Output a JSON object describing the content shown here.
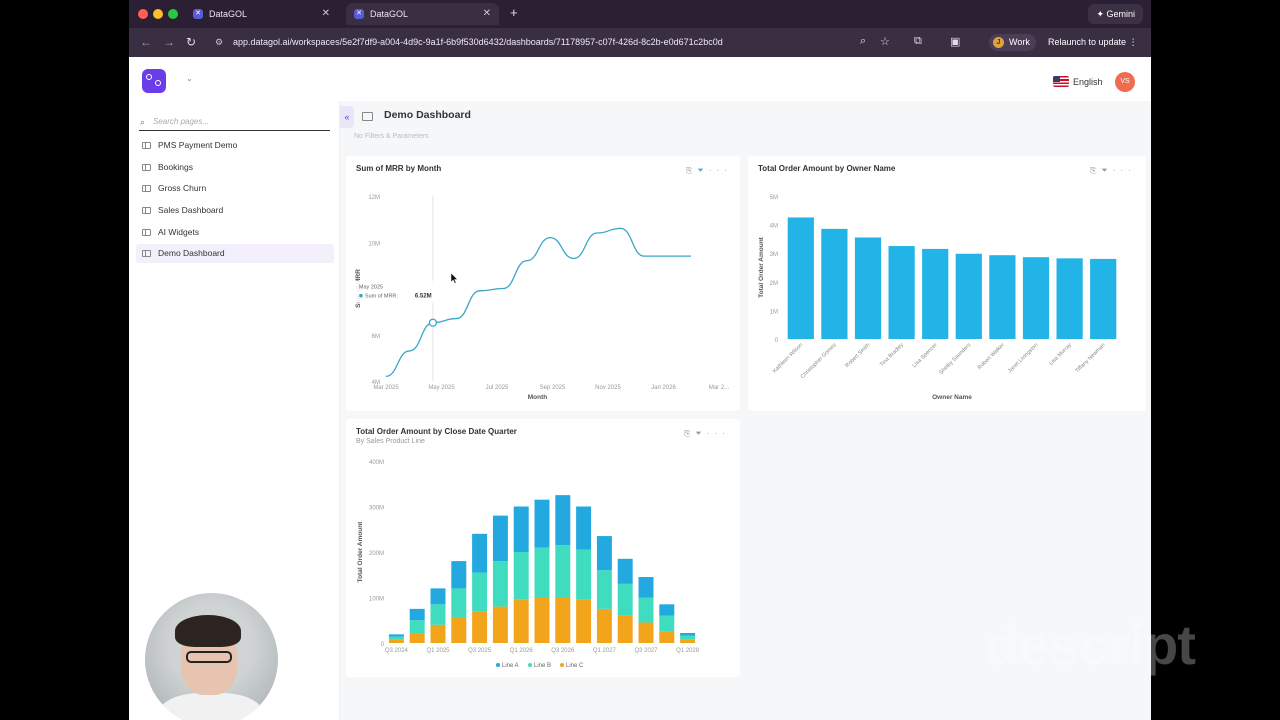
{
  "browser": {
    "tabs": [
      {
        "label": "DataGOL",
        "active": false
      },
      {
        "label": "DataGOL",
        "active": true
      }
    ],
    "new_tab": "+",
    "gemini_label": "Gemini",
    "url": "app.datagol.ai/workspaces/5e2f7df9-a004-4d9c-9a1f-6b9f530d6432/dashboards/71178957-c07f-426d-8c2b-e0d671c2bc0d",
    "profile_label": "Work",
    "profile_initial": "J",
    "relaunch_label": "Relaunch to update"
  },
  "header": {
    "language": "English",
    "avatar_initials": "VS"
  },
  "sidebar": {
    "search_placeholder": "Search pages...",
    "items": [
      {
        "label": "PMS Payment Demo",
        "active": false
      },
      {
        "label": "Bookings",
        "active": false
      },
      {
        "label": "Gross Churn",
        "active": false
      },
      {
        "label": "Sales Dashboard",
        "active": false
      },
      {
        "label": "AI Widgets",
        "active": false
      },
      {
        "label": "Demo Dashboard",
        "active": true
      }
    ]
  },
  "main": {
    "title": "Demo Dashboard",
    "filters_text": "No Filters & Parameters",
    "collapse_label": "«"
  },
  "chart_data": [
    {
      "type": "line",
      "title": "Sum of MRR by Month",
      "xlabel": "Month",
      "ylabel": "Sum of MRR",
      "y_ticks": [
        "12M",
        "10M",
        "8M",
        "6M",
        "4M"
      ],
      "x_ticks": [
        "Mar 2025",
        "May 2025",
        "Jul 2025",
        "Sep 2025",
        "Nov 2025",
        "Jan 2026",
        "Mar 2..."
      ],
      "ylim": [
        4,
        12
      ],
      "x": [
        0,
        1,
        2,
        3,
        4,
        5,
        6,
        7,
        8,
        9,
        10,
        11,
        12,
        13
      ],
      "values": [
        4.2,
        5.3,
        6.52,
        6.7,
        7.9,
        8.0,
        9.2,
        10.2,
        9.3,
        10.4,
        10.6,
        9.4,
        9.4,
        9.4
      ],
      "tooltip": {
        "label": "May 2025",
        "series": "Sum of MRR",
        "value": "6.52M"
      },
      "color": "#3aa6c6"
    },
    {
      "type": "bar",
      "title": "Total Order Amount by Owner Name",
      "xlabel": "Owner Name",
      "ylabel": "Total Order Amount",
      "y_ticks": [
        "5M",
        "4M",
        "3M",
        "2M",
        "1M",
        "0"
      ],
      "ylim": [
        0,
        5
      ],
      "categories": [
        "Kathleen Wilson",
        "Christopher Gomez",
        "Robert Smith",
        "Tina Bradley",
        "Lisa Spencer",
        "Shelby Saunders",
        "Robert Walker",
        "Janet Livingston",
        "Lisa Murray",
        "Tiffany Newman"
      ],
      "values": [
        4.25,
        3.85,
        3.55,
        3.25,
        3.15,
        2.98,
        2.93,
        2.86,
        2.82,
        2.8
      ],
      "color": "#22b4e6"
    },
    {
      "type": "bar",
      "stacked": true,
      "title": "Total Order Amount by Close Date Quarter",
      "subtitle": "By Sales Product Line",
      "xlabel": "",
      "ylabel": "Total Order Amount",
      "y_ticks": [
        "400M",
        "300M",
        "200M",
        "100M",
        "0"
      ],
      "ylim": [
        0,
        400
      ],
      "x_ticks": [
        "Q3 2024",
        "Q1 2025",
        "Q3 2025",
        "Q1 2026",
        "Q3 2026",
        "Q1 2027",
        "Q3 2027",
        "Q1 2028"
      ],
      "categories_count": 15,
      "series": [
        {
          "name": "Line C",
          "color": "#f2a41a",
          "values": [
            8,
            20,
            40,
            55,
            70,
            80,
            95,
            100,
            100,
            95,
            75,
            60,
            45,
            25,
            8
          ]
        },
        {
          "name": "Line B",
          "color": "#40dcc0",
          "values": [
            6,
            30,
            45,
            65,
            85,
            100,
            105,
            110,
            115,
            110,
            85,
            70,
            55,
            35,
            8
          ]
        },
        {
          "name": "Line A",
          "color": "#24a8e0",
          "values": [
            5,
            25,
            35,
            60,
            85,
            100,
            100,
            105,
            110,
            95,
            75,
            55,
            45,
            25,
            6
          ]
        }
      ],
      "legend": [
        "Line A",
        "Line B",
        "Line C"
      ],
      "legend_position": "bottom"
    }
  ]
}
